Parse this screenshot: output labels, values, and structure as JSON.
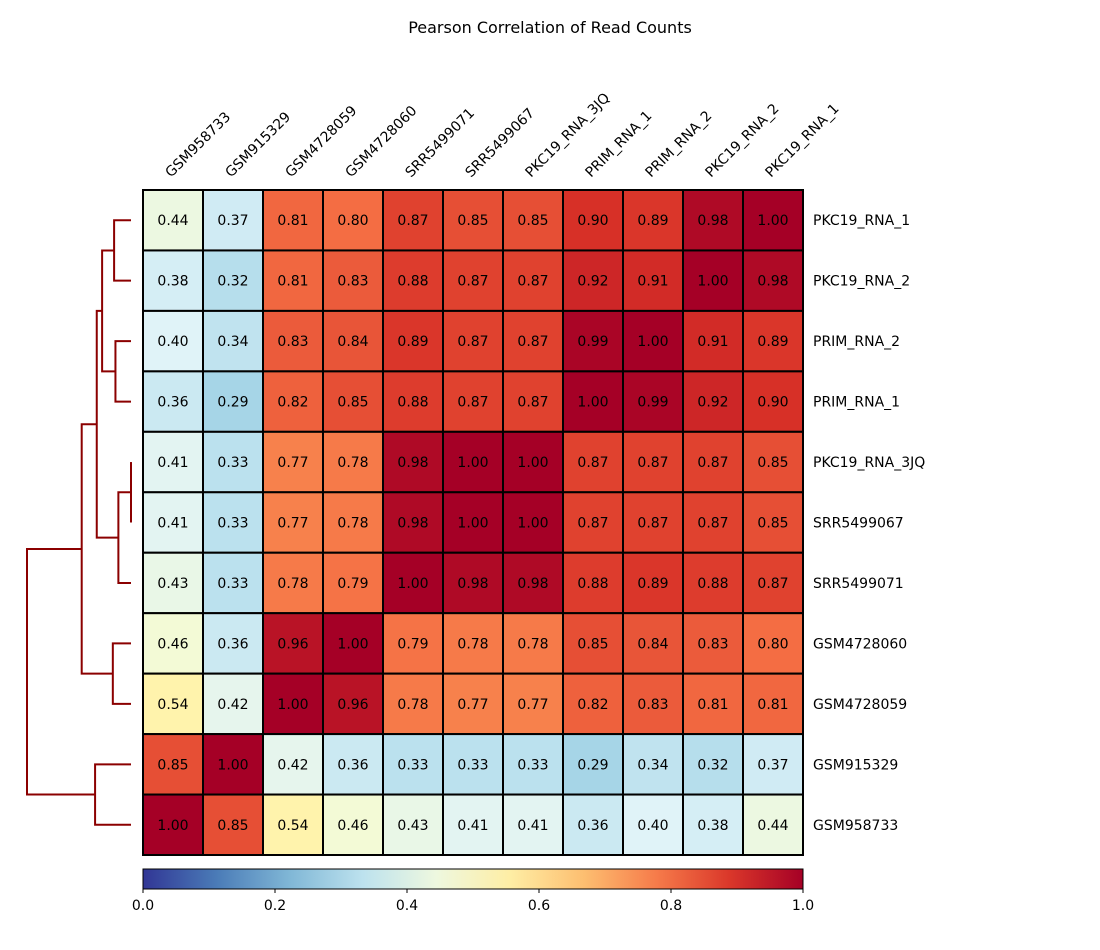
{
  "chart_data": {
    "type": "heatmap",
    "title": "Pearson Correlation of Read Counts",
    "column_labels": [
      "GSM958733",
      "GSM915329",
      "GSM4728059",
      "GSM4728060",
      "SRR5499071",
      "SRR5499067",
      "PKC19_RNA_3JQ",
      "PRIM_RNA_1",
      "PRIM_RNA_2",
      "PKC19_RNA_2",
      "PKC19_RNA_1"
    ],
    "row_labels": [
      "PKC19_RNA_1",
      "PKC19_RNA_2",
      "PRIM_RNA_2",
      "PRIM_RNA_1",
      "PKC19_RNA_3JQ",
      "SRR5499067",
      "SRR5499071",
      "GSM4728060",
      "GSM4728059",
      "GSM915329",
      "GSM958733"
    ],
    "values": [
      [
        0.44,
        0.37,
        0.81,
        0.8,
        0.87,
        0.85,
        0.85,
        0.9,
        0.89,
        0.98,
        1.0
      ],
      [
        0.38,
        0.32,
        0.81,
        0.83,
        0.88,
        0.87,
        0.87,
        0.92,
        0.91,
        1.0,
        0.98
      ],
      [
        0.4,
        0.34,
        0.83,
        0.84,
        0.89,
        0.87,
        0.87,
        0.99,
        1.0,
        0.91,
        0.89
      ],
      [
        0.36,
        0.29,
        0.82,
        0.85,
        0.88,
        0.87,
        0.87,
        1.0,
        0.99,
        0.92,
        0.9
      ],
      [
        0.41,
        0.33,
        0.77,
        0.78,
        0.98,
        1.0,
        1.0,
        0.87,
        0.87,
        0.87,
        0.85
      ],
      [
        0.41,
        0.33,
        0.77,
        0.78,
        0.98,
        1.0,
        1.0,
        0.87,
        0.87,
        0.87,
        0.85
      ],
      [
        0.43,
        0.33,
        0.78,
        0.79,
        1.0,
        0.98,
        0.98,
        0.88,
        0.89,
        0.88,
        0.87
      ],
      [
        0.46,
        0.36,
        0.96,
        1.0,
        0.79,
        0.78,
        0.78,
        0.85,
        0.84,
        0.83,
        0.8
      ],
      [
        0.54,
        0.42,
        1.0,
        0.96,
        0.78,
        0.77,
        0.77,
        0.82,
        0.83,
        0.81,
        0.81
      ],
      [
        0.85,
        1.0,
        0.42,
        0.36,
        0.33,
        0.33,
        0.33,
        0.29,
        0.34,
        0.32,
        0.37
      ],
      [
        1.0,
        0.85,
        0.54,
        0.46,
        0.43,
        0.41,
        0.41,
        0.36,
        0.4,
        0.38,
        0.44
      ]
    ],
    "value_format": "2 decimals",
    "colormap": "RdYlBu_r",
    "colormap_stops": [
      "#313695",
      "#4575b4",
      "#74add1",
      "#abd9e9",
      "#e0f3f8",
      "#ffffbf",
      "#fee090",
      "#fdae61",
      "#f46d43",
      "#d73027",
      "#a50026"
    ],
    "vmin": 0.0,
    "vmax": 1.0,
    "colorbar": {
      "orientation": "horizontal",
      "placement": "bottom",
      "ticks": [
        "0.0",
        "0.2",
        "0.4",
        "0.6",
        "0.8",
        "1.0"
      ]
    },
    "row_dendrogram": {
      "placement": "left",
      "color": "#8b0000",
      "links": [
        {
          "a": "row:0",
          "b": "row:1",
          "height": 0.08
        },
        {
          "a": "row:2",
          "b": "row:3",
          "height": 0.07
        },
        {
          "a": "link:0",
          "b": "link:1",
          "height": 0.19
        },
        {
          "a": "row:4",
          "b": "row:5",
          "height": 0.0
        },
        {
          "a": "link:3",
          "b": "row:6",
          "height": 0.05
        },
        {
          "a": "link:2",
          "b": "link:4",
          "height": 0.25
        },
        {
          "a": "row:7",
          "b": "row:8",
          "height": 0.09
        },
        {
          "a": "link:5",
          "b": "link:6",
          "height": 0.45
        },
        {
          "a": "row:9",
          "b": "row:10",
          "height": 0.27
        },
        {
          "a": "link:7",
          "b": "link:8",
          "height": 1.5
        }
      ]
    },
    "grid": false
  }
}
